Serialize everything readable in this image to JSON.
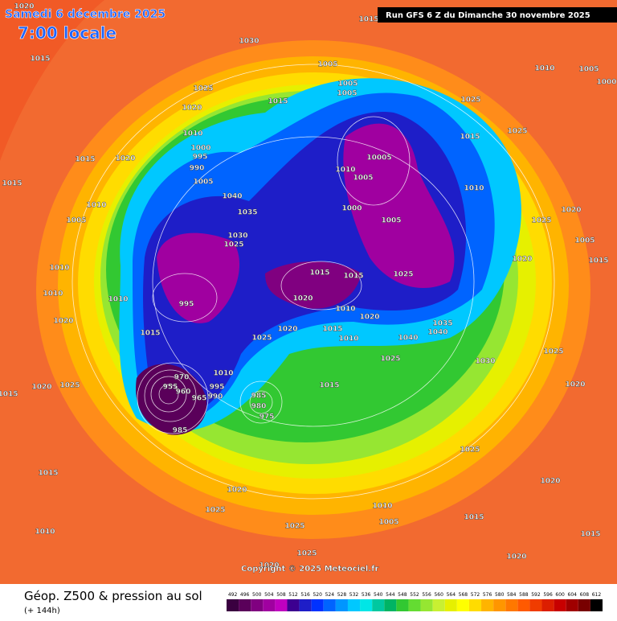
{
  "header": {
    "date": "Samedi 6 décembre 2025",
    "time": "7:00 locale",
    "run": "Run GFS 6 Z du Dimanche 30 novembre 2025"
  },
  "footer": {
    "title": "Géop. Z500 & pression au sol",
    "lead": "(+ 144h)",
    "copyright": "Copyright © 2025 Meteociel.fr"
  },
  "legend": {
    "ticks": [
      492,
      496,
      500,
      504,
      508,
      512,
      516,
      520,
      524,
      528,
      532,
      536,
      540,
      544,
      548,
      552,
      556,
      560,
      564,
      568,
      572,
      576,
      580,
      584,
      588,
      592,
      596,
      600,
      604,
      608,
      612
    ],
    "colors": [
      "#3a0040",
      "#5a005a",
      "#800080",
      "#a000a0",
      "#c000c0",
      "#3c0090",
      "#1e1ec8",
      "#0032ff",
      "#0064ff",
      "#0096ff",
      "#00c8ff",
      "#00e6e6",
      "#00c8a0",
      "#00b464",
      "#32c832",
      "#64dc32",
      "#96e632",
      "#c8f032",
      "#e6f000",
      "#ffff00",
      "#ffdc00",
      "#ffb400",
      "#ff9600",
      "#ff7800",
      "#ff5a00",
      "#f03c00",
      "#dc1e00",
      "#c80000",
      "#a00000",
      "#780000",
      "#000000"
    ]
  },
  "isobar_labels": [
    "1020",
    "1015",
    "1015",
    "1030",
    "1005",
    "1025",
    "1020",
    "1015",
    "1005",
    "1005",
    "1025",
    "1010",
    "1005",
    "1010",
    "1000",
    "995",
    "990",
    "1005",
    "1020",
    "1015",
    "1015",
    "1010",
    "1005",
    "1040",
    "1035",
    "1030",
    "1025",
    "10005",
    "1005",
    "1010",
    "1000",
    "1005",
    "1025",
    "1015",
    "1010",
    "1025",
    "1020",
    "1005",
    "1020",
    "1015",
    "1015",
    "1015",
    "1025",
    "1010",
    "1010",
    "1010",
    "1020",
    "995",
    "1015",
    "1025",
    "1020",
    "1020",
    "1015",
    "1010",
    "1010",
    "1020",
    "1040",
    "1040",
    "1035",
    "1025",
    "1030",
    "1025",
    "1020",
    "1015",
    "1020",
    "1025",
    "955",
    "970",
    "960",
    "965",
    "990",
    "995",
    "1010",
    "985",
    "980",
    "975",
    "985",
    "1015",
    "1025",
    "1020",
    "1015",
    "1020",
    "1025",
    "1010",
    "1005",
    "1025",
    "1015",
    "1025",
    "1010",
    "1015",
    "1020",
    "1020",
    "1000"
  ]
}
